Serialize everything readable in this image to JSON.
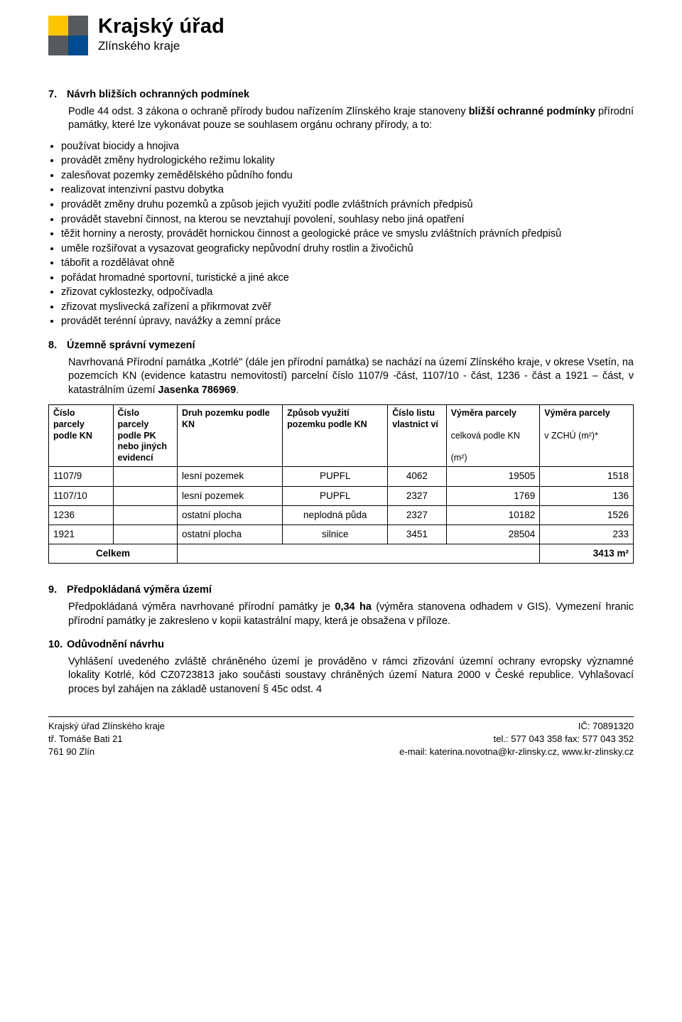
{
  "colors": {
    "logo_tl": "#fdc400",
    "logo_tr": "#565a5c",
    "logo_bl": "#565a5c",
    "logo_br": "#004a8f",
    "text": "#000000",
    "background": "#ffffff",
    "border": "#000000"
  },
  "logo": {
    "line1": "Krajský úřad",
    "line2": "Zlínského kraje"
  },
  "section7": {
    "num": "7.",
    "title": "Návrh bližších ochranných podmínek",
    "intro_a": "Podle  44 odst. 3 zákona o ochraně přírody budou nařízením Zlínského kraje stanoveny ",
    "intro_b": "bližší ochranné podmínky",
    "intro_c": " přírodní památky, které lze vykonávat pouze se souhlasem orgánu ochrany přírody, a to:",
    "bullets": [
      "používat biocidy a hnojiva",
      "provádět změny hydrologického režimu lokality",
      "zalesňovat pozemky zemědělského půdního fondu",
      "realizovat intenzivní pastvu dobytka",
      "provádět změny druhu pozemků a způsob jejich využití podle zvláštních právních předpisů",
      "provádět stavební činnost, na kterou se nevztahují povolení, souhlasy nebo jiná opatření",
      "těžit horniny a nerosty, provádět hornickou činnost a geologické práce ve smyslu zvláštních právních předpisů",
      "uměle rozšiřovat a vysazovat geograficky nepůvodní druhy rostlin a živočichů",
      "tábořit a rozdělávat ohně",
      "pořádat hromadné sportovní, turistické a jiné akce",
      "zřizovat cyklostezky, odpočívadla",
      "zřizovat myslivecká zařízení a přikrmovat zvěř",
      "provádět terénní úpravy, navážky a zemní práce"
    ]
  },
  "section8": {
    "num": "8.",
    "title": "Územně správní vymezení",
    "body_a": "Navrhovaná Přírodní památka „Kotrlé\" (dále jen přírodní památka) se nachází na území Zlínského kraje, v okrese Vsetín, na pozemcích KN (evidence katastru nemovitostí) parcelní číslo 1107/9 -část, 1107/10 - část, 1236 - část a 1921 – část, v katastrálním území ",
    "body_b": "Jasenka 786969",
    "body_c": "."
  },
  "table": {
    "headers": {
      "c1": "Číslo parcely podle KN",
      "c2": "Číslo parcely podle PK nebo jiných evidencí",
      "c3": "Druh pozemku podle KN",
      "c4": "Způsob využití pozemku podle KN",
      "c5": "Číslo listu vlastnict ví",
      "c6a": "Výměra parcely",
      "c6b": "celková podle KN",
      "c6c": "(m²)",
      "c7a": "Výměra parcely",
      "c7b": "v ZCHÚ (m²)*"
    },
    "rows": [
      {
        "kn": "1107/9",
        "pk": "",
        "druh": "lesní pozemek",
        "zpusob": "PUPFL",
        "list": "4062",
        "vym_kn": "19505",
        "vym_zchu": "1518"
      },
      {
        "kn": "1107/10",
        "pk": "",
        "druh": "lesní pozemek",
        "zpusob": "PUPFL",
        "list": "2327",
        "vym_kn": "1769",
        "vym_zchu": "136"
      },
      {
        "kn": "1236",
        "pk": "",
        "druh": "ostatní plocha",
        "zpusob": "neplodná půda",
        "list": "2327",
        "vym_kn": "10182",
        "vym_zchu": "1526"
      },
      {
        "kn": "1921",
        "pk": "",
        "druh": "ostatní plocha",
        "zpusob": "silnice",
        "list": "3451",
        "vym_kn": "28504",
        "vym_zchu": "233"
      }
    ],
    "total_label": "Celkem",
    "total_value": "3413 m²"
  },
  "section9": {
    "num": "9.",
    "title": "Předpokládaná výměra území",
    "body_a": "Předpokládaná výměra navrhované přírodní památky je ",
    "body_b": "0,34 ha",
    "body_c": " (výměra stanovena odhadem v GIS). Vymezení hranic přírodní památky je zakresleno v kopii katastrální mapy, která je obsažena v příloze."
  },
  "section10": {
    "num": "10.",
    "title": "Odůvodnění návrhu",
    "body": "Vyhlášení uvedeného zvláště chráněného území je prováděno v rámci zřizování územní ochrany evropsky významné lokality Kotrlé, kód CZ0723813 jako součásti soustavy chráněných území Natura 2000 v České republice. Vyhlašovací proces byl zahájen na základě ustanovení § 45c odst. 4"
  },
  "footer": {
    "left1": "Krajský úřad Zlínského kraje",
    "left2": "tř. Tomáše Bati 21",
    "left3": "761 90  Zlín",
    "right1": "IČ: 70891320",
    "right2": "tel.: 577 043 358 fax: 577 043 352",
    "right3": "e-mail: katerina.novotna@kr-zlinsky.cz, www.kr-zlinsky.cz"
  }
}
